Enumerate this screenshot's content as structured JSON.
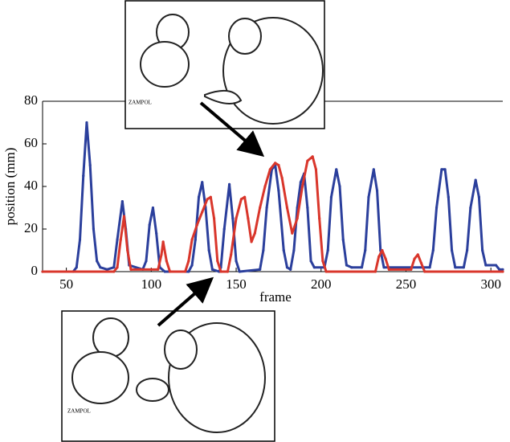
{
  "chart_data": {
    "type": "line",
    "x_label": "frame",
    "y_label": "position (mm)",
    "xlim": [
      36,
      307
    ],
    "ylim": [
      0,
      80
    ],
    "xticks": [
      50,
      100,
      150,
      200,
      250,
      300
    ],
    "yticks": [
      0,
      20,
      40,
      60,
      80
    ],
    "series": [
      {
        "color": "#2b3f9c",
        "x": [
          36,
          54,
          56,
          58,
          60,
          62,
          64,
          66,
          68,
          70,
          74,
          78,
          80,
          83,
          85,
          87,
          95,
          97,
          99,
          101,
          103,
          105,
          108,
          122,
          124,
          126,
          128,
          130,
          132,
          134,
          136,
          140,
          141,
          143,
          146,
          148,
          150,
          152,
          164,
          166,
          168,
          171,
          173,
          175,
          178,
          180,
          182,
          184,
          186,
          188,
          190,
          192,
          194,
          196,
          202,
          204,
          206,
          209,
          211,
          213,
          215,
          218,
          224,
          226,
          228,
          231,
          233,
          235,
          237,
          264,
          266,
          268,
          271,
          273,
          275,
          277,
          279,
          284,
          286,
          288,
          291,
          293,
          295,
          297,
          303,
          305,
          307
        ],
        "values": [
          0,
          0,
          2,
          15,
          45,
          70,
          50,
          20,
          5,
          2,
          1,
          2,
          15,
          33,
          20,
          3,
          1,
          5,
          22,
          30,
          18,
          2,
          0,
          0,
          3,
          15,
          35,
          42,
          30,
          10,
          1,
          0,
          2,
          20,
          41,
          25,
          5,
          0,
          1,
          10,
          30,
          48,
          50,
          38,
          10,
          2,
          1,
          10,
          30,
          42,
          46,
          30,
          5,
          2,
          2,
          10,
          35,
          48,
          40,
          15,
          3,
          2,
          2,
          10,
          35,
          48,
          38,
          10,
          2,
          2,
          10,
          30,
          48,
          48,
          35,
          10,
          2,
          2,
          10,
          30,
          43,
          35,
          10,
          3,
          3,
          1,
          1
        ]
      },
      {
        "color": "#d9362b",
        "x": [
          36,
          78,
          80,
          82,
          84,
          86,
          88,
          104,
          106,
          107,
          109,
          111,
          120,
          122,
          124,
          127,
          130,
          133,
          135,
          137,
          139,
          141,
          145,
          147,
          150,
          153,
          155,
          157,
          159,
          161,
          164,
          167,
          170,
          173,
          175,
          177,
          180,
          183,
          186,
          189,
          192,
          195,
          197,
          199,
          201,
          203,
          232,
          234,
          236,
          238,
          240,
          253,
          255,
          257,
          259,
          261,
          307
        ],
        "values": [
          0,
          0,
          2,
          15,
          26,
          10,
          1,
          1,
          8,
          14,
          5,
          0,
          0,
          5,
          15,
          22,
          28,
          34,
          35,
          25,
          5,
          0,
          0,
          8,
          25,
          34,
          35,
          25,
          14,
          18,
          30,
          40,
          48,
          51,
          50,
          44,
          30,
          18,
          25,
          40,
          52,
          54,
          48,
          25,
          5,
          0,
          0,
          7,
          10,
          6,
          1,
          1,
          6,
          8,
          4,
          0,
          0
        ]
      }
    ]
  },
  "insets": [
    {
      "label": "ZAMPOL"
    },
    {
      "label": "ZAMPOL"
    }
  ]
}
